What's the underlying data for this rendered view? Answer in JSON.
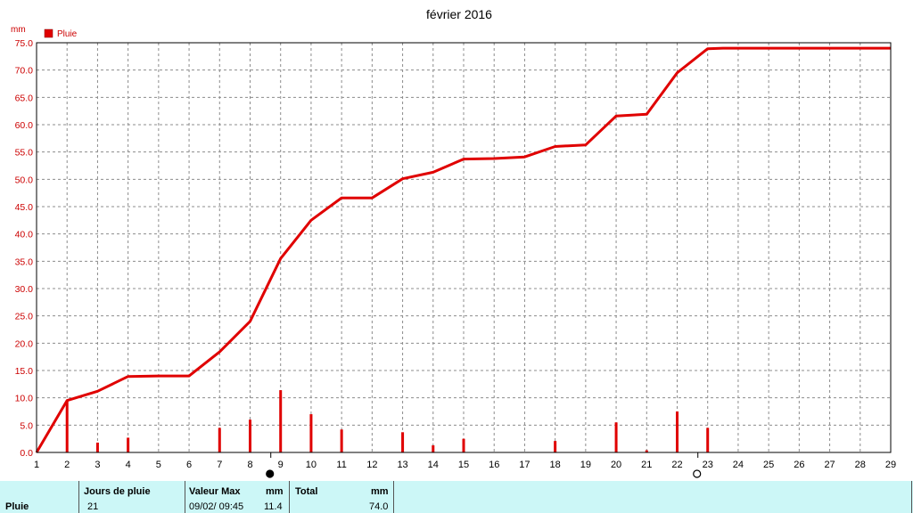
{
  "chart_data": {
    "type": "bar+line",
    "title": "février 2016",
    "ylabel": "mm",
    "ylim": [
      0,
      75
    ],
    "y_ticks": [
      "0.0",
      "5.0",
      "10.0",
      "15.0",
      "20.0",
      "25.0",
      "30.0",
      "35.0",
      "40.0",
      "45.0",
      "50.0",
      "55.0",
      "60.0",
      "65.0",
      "70.0",
      "75.0"
    ],
    "x_ticks": [
      "1",
      "2",
      "3",
      "4",
      "5",
      "6",
      "7",
      "8",
      "9",
      "10",
      "11",
      "12",
      "13",
      "14",
      "15",
      "16",
      "17",
      "18",
      "19",
      "20",
      "21",
      "22",
      "23",
      "24",
      "25",
      "26",
      "27",
      "28",
      "29"
    ],
    "grid": true,
    "legend": {
      "position": "top-left",
      "entries": [
        "Pluie"
      ]
    },
    "colors": {
      "series": "#e00000",
      "ticks": "#cc0000"
    },
    "series": [
      {
        "name": "Pluie",
        "kind": "bar",
        "x": [
          2,
          3,
          4,
          7,
          8,
          9,
          10,
          11,
          13,
          14,
          15,
          18,
          20,
          21,
          22,
          23
        ],
        "values": [
          9.5,
          1.8,
          2.7,
          4.5,
          6.0,
          11.4,
          7.0,
          4.2,
          3.7,
          1.3,
          2.5,
          2.1,
          5.5,
          0.4,
          7.5,
          4.5
        ]
      },
      {
        "kind": "line",
        "x": [
          1,
          2,
          3,
          4,
          5,
          6,
          7,
          8,
          9,
          10,
          11,
          12,
          13,
          14,
          15,
          16,
          17,
          18,
          19,
          20,
          21,
          22,
          23,
          23.5,
          29
        ],
        "values": [
          0.0,
          9.5,
          11.2,
          13.9,
          14.0,
          14.0,
          18.4,
          24.0,
          35.5,
          42.5,
          46.6,
          46.6,
          50.1,
          51.3,
          53.7,
          53.8,
          54.1,
          56.0,
          56.3,
          61.6,
          61.9,
          69.5,
          73.9,
          74.0,
          74.0
        ]
      }
    ],
    "markers": [
      {
        "day": 9,
        "symbol": "full-moon-marker"
      },
      {
        "day": 23,
        "symbol": "new-moon-marker"
      }
    ]
  },
  "stats": {
    "row_label": "Pluie",
    "rain_days_header": "Jours de pluie",
    "rain_days_value": "21",
    "max_header": "Valeur Max",
    "max_unit": "mm",
    "max_datetime": "09/02/  09:45",
    "max_value": "11.4",
    "total_header": "Total",
    "total_unit": "mm",
    "total_value": "74.0"
  }
}
